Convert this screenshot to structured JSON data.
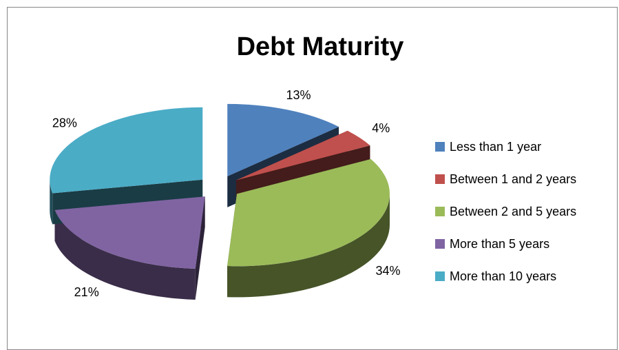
{
  "chart_data": {
    "type": "pie",
    "title": "Debt Maturity",
    "categories": [
      "Less than 1 year",
      "Between 1 and 2 years",
      "Between 2 and 5 years",
      "More than 5 years",
      "More than 10 years"
    ],
    "values": [
      13,
      4,
      34,
      21,
      28
    ],
    "value_labels": [
      "13%",
      "4%",
      "34%",
      "21%",
      "28%"
    ],
    "colors": [
      "#4f81bd",
      "#c0504d",
      "#9bbb59",
      "#8064a2",
      "#4bacc6"
    ],
    "legend": "right"
  }
}
